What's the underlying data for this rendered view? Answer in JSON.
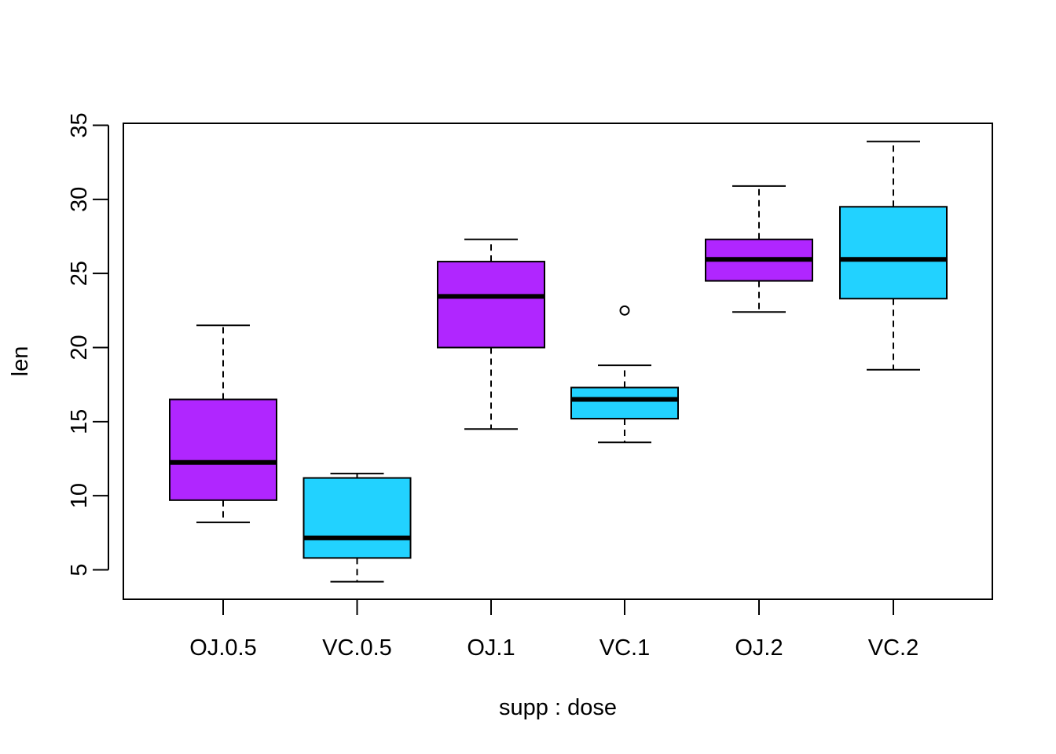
{
  "chart_data": {
    "type": "boxplot",
    "title": "",
    "xlabel": "supp : dose",
    "ylabel": "len",
    "ylim": [
      3,
      35
    ],
    "y_ticks": [
      5,
      10,
      15,
      20,
      25,
      30,
      35
    ],
    "categories": [
      "OJ.0.5",
      "VC.0.5",
      "OJ.1",
      "VC.1",
      "OJ.2",
      "VC.2"
    ],
    "boxes": [
      {
        "label": "OJ.0.5",
        "whisker_low": 8.2,
        "q1": 9.7,
        "median": 12.25,
        "q3": 16.5,
        "whisker_high": 21.5,
        "outliers": [],
        "color": "#B026FF"
      },
      {
        "label": "VC.0.5",
        "whisker_low": 4.2,
        "q1": 5.8,
        "median": 7.15,
        "q3": 11.2,
        "whisker_high": 11.5,
        "outliers": [],
        "color": "#22D2FF"
      },
      {
        "label": "OJ.1",
        "whisker_low": 14.5,
        "q1": 20.0,
        "median": 23.45,
        "q3": 25.8,
        "whisker_high": 27.3,
        "outliers": [],
        "color": "#B026FF"
      },
      {
        "label": "VC.1",
        "whisker_low": 13.6,
        "q1": 15.2,
        "median": 16.5,
        "q3": 17.3,
        "whisker_high": 18.8,
        "outliers": [
          22.5
        ],
        "color": "#22D2FF"
      },
      {
        "label": "OJ.2",
        "whisker_low": 22.4,
        "q1": 24.5,
        "median": 25.95,
        "q3": 27.3,
        "whisker_high": 30.9,
        "outliers": [],
        "color": "#B026FF"
      },
      {
        "label": "VC.2",
        "whisker_low": 18.5,
        "q1": 23.3,
        "median": 25.95,
        "q3": 29.5,
        "whisker_high": 33.9,
        "outliers": [],
        "color": "#22D2FF"
      }
    ],
    "grid": false,
    "legend": "none"
  }
}
